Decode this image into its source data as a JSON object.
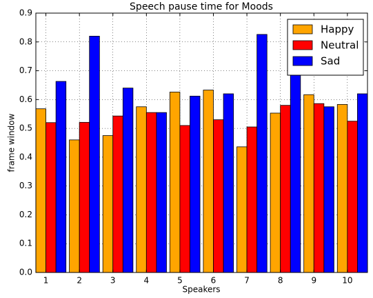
{
  "chart_data": {
    "type": "bar",
    "title": "Speech pause time for Moods",
    "x_label": "Speakers",
    "y_label": "frame window",
    "categories": [
      "1",
      "2",
      "3",
      "4",
      "5",
      "6",
      "7",
      "8",
      "9",
      "10"
    ],
    "series": [
      {
        "name": "Happy",
        "color": "#ffa500",
        "values": [
          0.568,
          0.46,
          0.475,
          0.575,
          0.626,
          0.633,
          0.436,
          0.553,
          0.617,
          0.583
        ]
      },
      {
        "name": "Neutral",
        "color": "#ff0000",
        "values": [
          0.52,
          0.521,
          0.543,
          0.555,
          0.51,
          0.53,
          0.505,
          0.58,
          0.586,
          0.525
        ]
      },
      {
        "name": "Sad",
        "color": "#0000ff",
        "values": [
          0.663,
          0.82,
          0.64,
          0.555,
          0.612,
          0.62,
          0.826,
          0.74,
          0.575,
          0.62
        ]
      }
    ],
    "ylim": [
      0,
      0.9
    ],
    "yticks": [
      {
        "value": 0,
        "label": "0.0"
      },
      0.1,
      0.2,
      0.3,
      0.4,
      0.5,
      0.6,
      0.7,
      0.8,
      0.9
    ],
    "grid": true,
    "legend": "upper right"
  }
}
